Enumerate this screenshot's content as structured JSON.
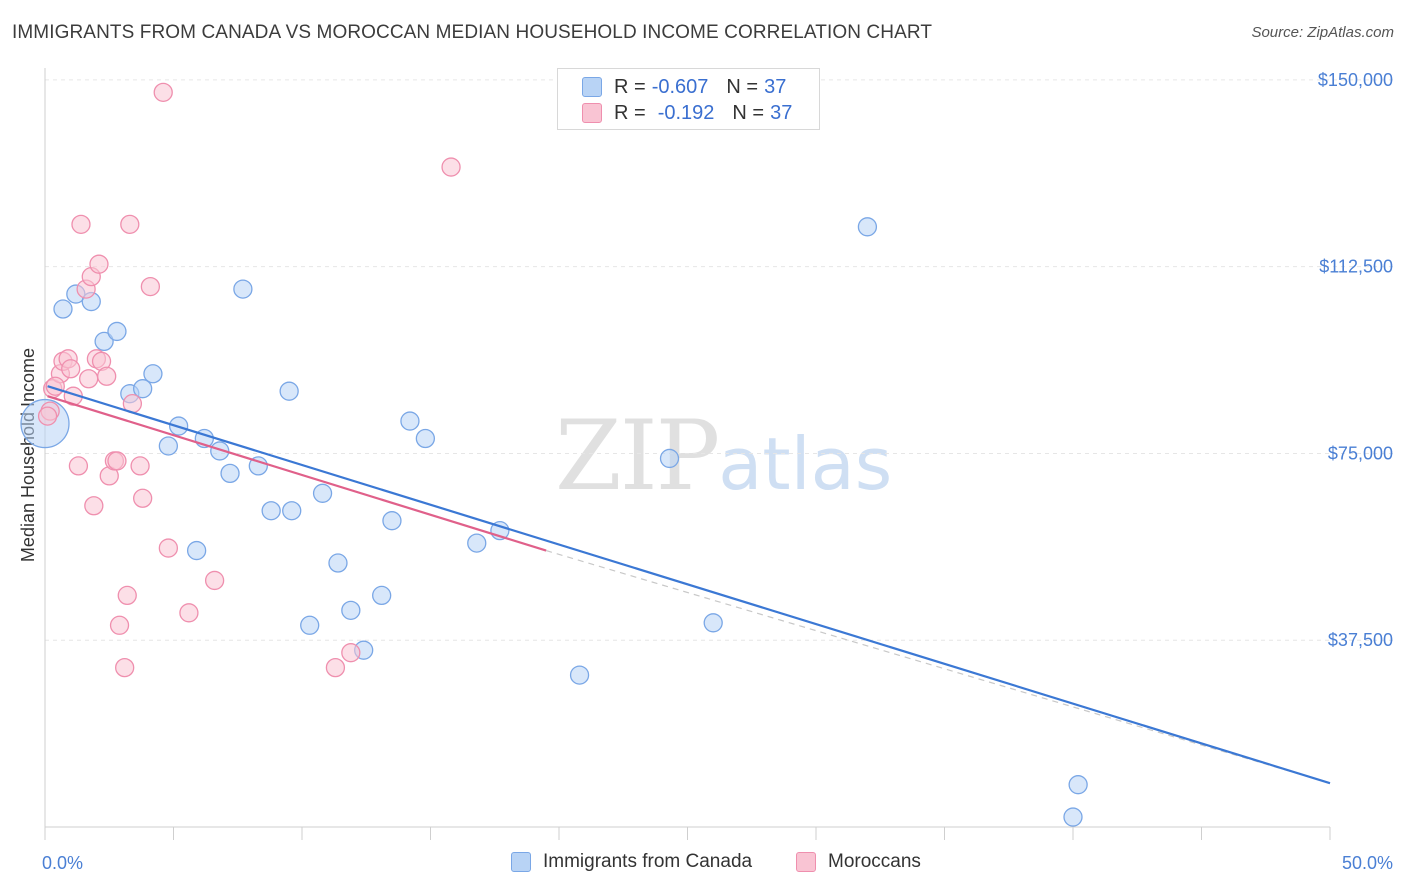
{
  "header": {
    "title": "IMMIGRANTS FROM CANADA VS MOROCCAN MEDIAN HOUSEHOLD INCOME CORRELATION CHART",
    "source": "Source: ZipAtlas.com"
  },
  "watermark": {
    "zip": "ZIP",
    "atlas": "atlas"
  },
  "legend": {
    "rows": [
      {
        "r_label": "R =",
        "r_value": "-0.607",
        "n_label": "N =",
        "n_value": "37",
        "color": "#b8d3f5",
        "border": "#7aa7e6"
      },
      {
        "r_label": "R =",
        "r_value": "-0.192",
        "n_label": "N =",
        "n_value": "37",
        "color": "#f9c4d3",
        "border": "#ef8fae"
      }
    ]
  },
  "bottom_legend": [
    {
      "label": "Immigrants from Canada",
      "color": "#b8d3f5",
      "border": "#7aa7e6"
    },
    {
      "label": "Moroccans",
      "color": "#f9c4d3",
      "border": "#ef8fae"
    }
  ],
  "chart_data": {
    "type": "scatter",
    "title": "IMMIGRANTS FROM CANADA VS MOROCCAN MEDIAN HOUSEHOLD INCOME CORRELATION CHART",
    "xlabel": "",
    "ylabel": "Median Household Income",
    "xlim": [
      0,
      50
    ],
    "ylim": [
      0,
      155000
    ],
    "x_tick_labels": [
      "0.0%",
      "50.0%"
    ],
    "y_ticks": [
      37500,
      75000,
      112500,
      150000
    ],
    "y_tick_labels": [
      "$37,500",
      "$75,000",
      "$112,500",
      "$150,000"
    ],
    "grid": true,
    "legend_position": "top-center",
    "series": [
      {
        "name": "Immigrants from Canada",
        "color": "#7aa7e6",
        "fill": "#b8d3f5",
        "line_color": "#3b78d4",
        "trend": {
          "x": [
            0.1,
            50.0
          ],
          "y": [
            88500,
            8800
          ]
        },
        "points": [
          {
            "x": 0.0,
            "y": 81000,
            "big": true
          },
          {
            "x": 0.7,
            "y": 104000
          },
          {
            "x": 1.2,
            "y": 107000
          },
          {
            "x": 1.8,
            "y": 105500
          },
          {
            "x": 2.3,
            "y": 97500
          },
          {
            "x": 2.8,
            "y": 99500
          },
          {
            "x": 3.3,
            "y": 87000
          },
          {
            "x": 3.8,
            "y": 88000
          },
          {
            "x": 4.2,
            "y": 91000
          },
          {
            "x": 5.2,
            "y": 80500
          },
          {
            "x": 4.8,
            "y": 76500
          },
          {
            "x": 6.2,
            "y": 78000
          },
          {
            "x": 6.8,
            "y": 75500
          },
          {
            "x": 7.2,
            "y": 71000
          },
          {
            "x": 7.7,
            "y": 108000
          },
          {
            "x": 8.3,
            "y": 72500
          },
          {
            "x": 8.8,
            "y": 63500
          },
          {
            "x": 9.6,
            "y": 63500
          },
          {
            "x": 9.5,
            "y": 87500
          },
          {
            "x": 10.8,
            "y": 67000
          },
          {
            "x": 5.9,
            "y": 55500
          },
          {
            "x": 10.3,
            "y": 40500
          },
          {
            "x": 11.4,
            "y": 53000
          },
          {
            "x": 11.9,
            "y": 43500
          },
          {
            "x": 12.4,
            "y": 35500
          },
          {
            "x": 13.1,
            "y": 46500
          },
          {
            "x": 13.5,
            "y": 61500
          },
          {
            "x": 14.2,
            "y": 81500
          },
          {
            "x": 14.8,
            "y": 78000
          },
          {
            "x": 16.8,
            "y": 57000
          },
          {
            "x": 17.7,
            "y": 59500
          },
          {
            "x": 20.8,
            "y": 30500
          },
          {
            "x": 24.3,
            "y": 74000
          },
          {
            "x": 26.0,
            "y": 41000
          },
          {
            "x": 32.0,
            "y": 120500
          },
          {
            "x": 40.2,
            "y": 8500
          },
          {
            "x": 40.0,
            "y": 2000
          }
        ]
      },
      {
        "name": "Moroccans",
        "color": "#ef8fae",
        "fill": "#f9c4d3",
        "line_color": "#e0608a",
        "trend": {
          "x": [
            0.1,
            19.5
          ],
          "y": [
            86500,
            55500
          ]
        },
        "points": [
          {
            "x": 0.2,
            "y": 83500
          },
          {
            "x": 0.3,
            "y": 88000
          },
          {
            "x": 0.6,
            "y": 91000
          },
          {
            "x": 0.7,
            "y": 93500
          },
          {
            "x": 0.9,
            "y": 94000
          },
          {
            "x": 1.0,
            "y": 92000
          },
          {
            "x": 1.1,
            "y": 86500
          },
          {
            "x": 1.3,
            "y": 72500
          },
          {
            "x": 1.4,
            "y": 121000
          },
          {
            "x": 1.6,
            "y": 108000
          },
          {
            "x": 1.7,
            "y": 90000
          },
          {
            "x": 1.8,
            "y": 110500
          },
          {
            "x": 1.9,
            "y": 64500
          },
          {
            "x": 2.0,
            "y": 94000
          },
          {
            "x": 2.1,
            "y": 113000
          },
          {
            "x": 2.2,
            "y": 93500
          },
          {
            "x": 2.4,
            "y": 90500
          },
          {
            "x": 2.5,
            "y": 70500
          },
          {
            "x": 2.7,
            "y": 73500
          },
          {
            "x": 2.8,
            "y": 73500
          },
          {
            "x": 2.9,
            "y": 40500
          },
          {
            "x": 3.1,
            "y": 32000
          },
          {
            "x": 3.2,
            "y": 46500
          },
          {
            "x": 3.3,
            "y": 121000
          },
          {
            "x": 3.4,
            "y": 85000
          },
          {
            "x": 3.7,
            "y": 72500
          },
          {
            "x": 3.8,
            "y": 66000
          },
          {
            "x": 4.1,
            "y": 108500
          },
          {
            "x": 4.6,
            "y": 147500
          },
          {
            "x": 4.8,
            "y": 56000
          },
          {
            "x": 5.6,
            "y": 43000
          },
          {
            "x": 6.6,
            "y": 49500
          },
          {
            "x": 11.3,
            "y": 32000
          },
          {
            "x": 11.9,
            "y": 35000
          },
          {
            "x": 15.8,
            "y": 132500
          },
          {
            "x": 0.1,
            "y": 82500
          },
          {
            "x": 0.4,
            "y": 88500
          }
        ]
      }
    ]
  }
}
